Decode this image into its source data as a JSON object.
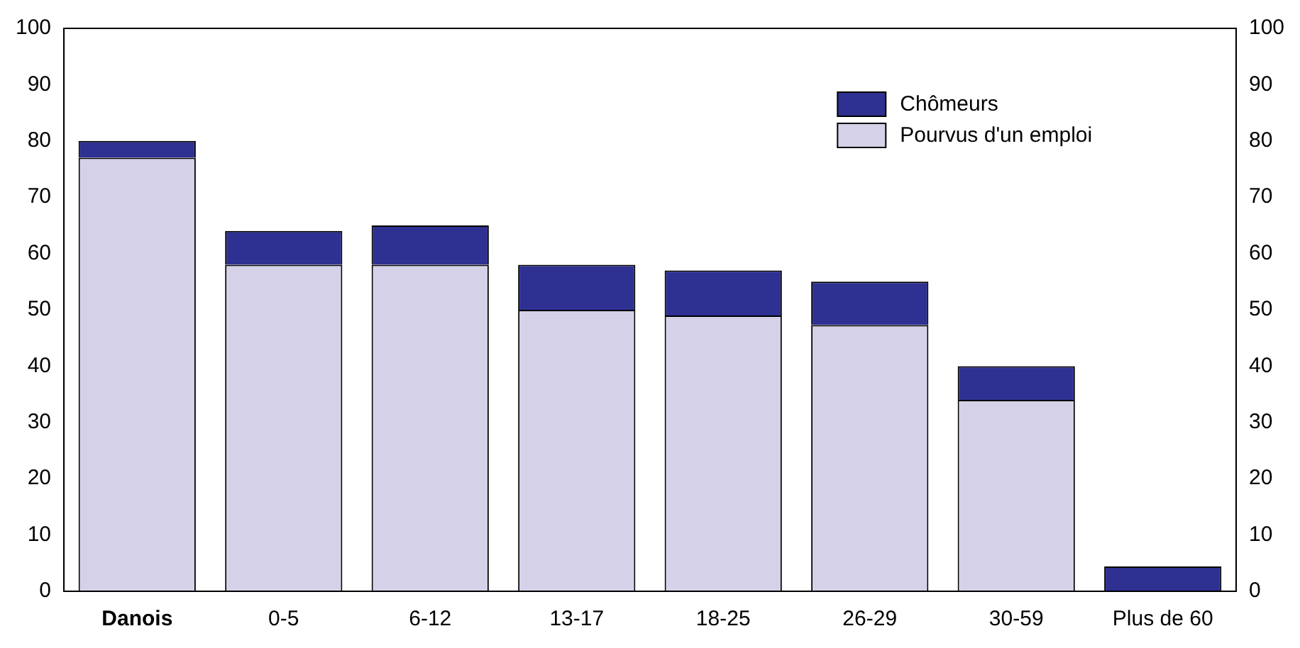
{
  "chart_data": {
    "type": "bar",
    "stacked": true,
    "categories": [
      "Danois",
      "0-5",
      "6-12",
      "13-17",
      "18-25",
      "26-29",
      "30-59",
      "Plus de 60"
    ],
    "series": [
      {
        "name": "Pourvus d'un emploi",
        "color": "#d4d1e8",
        "values": [
          77,
          58,
          58,
          50,
          49,
          47.3,
          34,
          0
        ]
      },
      {
        "name": "Chômeurs",
        "color": "#2e3192",
        "values": [
          3,
          6,
          7,
          8,
          8,
          7.7,
          6,
          4.4
        ]
      }
    ],
    "ylim": [
      0,
      100
    ],
    "yticks": [
      0,
      10,
      20,
      30,
      40,
      50,
      60,
      70,
      80,
      90,
      100
    ],
    "y2lim": [
      0,
      100
    ],
    "y2ticks": [
      0,
      10,
      20,
      30,
      40,
      50,
      60,
      70,
      80,
      90,
      100
    ],
    "grid": false,
    "legend": "top right"
  }
}
